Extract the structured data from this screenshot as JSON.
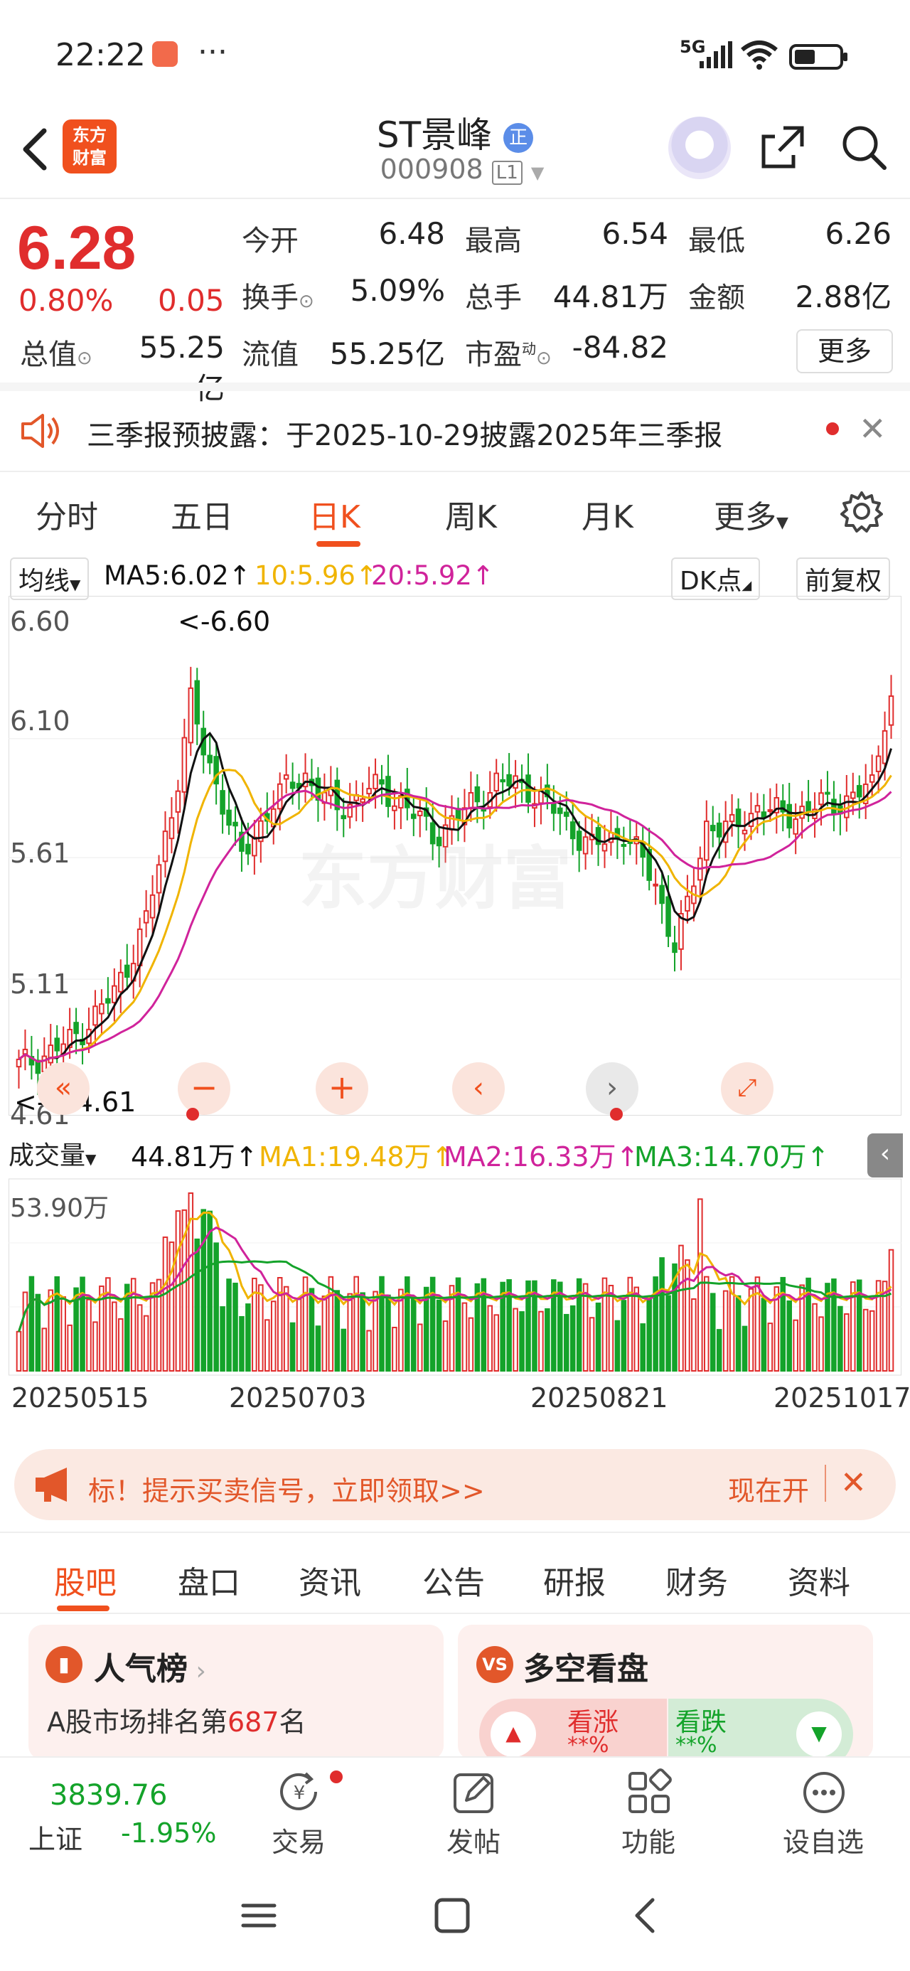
{
  "status_bar": {
    "time": "22:22",
    "dots": "···",
    "network": "5G"
  },
  "header": {
    "logo_line1": "东方",
    "logo_line2": "财富",
    "stock_name": "ST景峰",
    "badge": "正",
    "stock_code": "000908",
    "level": "L1"
  },
  "quote": {
    "price": "6.28",
    "change_pct": "0.80%",
    "change_amt": "0.05",
    "fields": [
      {
        "label": "今开",
        "value": "6.48",
        "color": "#e02d2d"
      },
      {
        "label": "最高",
        "value": "6.54",
        "color": "#e02d2d"
      },
      {
        "label": "最低",
        "value": "6.26",
        "color": "#e02d2d"
      },
      {
        "label": "换手",
        "value": "5.09%",
        "color": "#222"
      },
      {
        "label": "总手",
        "value": "44.81万",
        "color": "#222"
      },
      {
        "label": "金额",
        "value": "2.88亿",
        "color": "#222"
      },
      {
        "label": "总值",
        "value": "55.25亿",
        "color": "#222"
      },
      {
        "label": "流值",
        "value": "55.25亿",
        "color": "#222"
      },
      {
        "label": "市盈",
        "value": "-84.82",
        "color": "#222"
      }
    ],
    "pe_super": "动",
    "more_label": "更多"
  },
  "notice": {
    "text": "三季报预披露：于2025-10-29披露2025年三季报"
  },
  "k_tabs": [
    "分时",
    "五日",
    "日K",
    "周K",
    "月K",
    "更多"
  ],
  "ma": {
    "selector": "均线",
    "ma5": "MA5:6.02",
    "ma10": "10:5.96",
    "ma20": "20:5.92",
    "dk": "DK点",
    "adjust": "前复权"
  },
  "chart": {
    "y_labels": [
      "6.60",
      "6.10",
      "5.61",
      "5.11",
      "4.61"
    ],
    "high_mark": "<-6.60",
    "low_mark": "<----4.61",
    "volume_selector": "成交量",
    "volume_value": "44.81万",
    "vol_ma1": "MA1:19.48万",
    "vol_ma2": "MA2:16.33万",
    "vol_ma3": "MA3:14.70万",
    "vol_max": "53.90万",
    "dates": [
      "20250515",
      "20250703",
      "20250821",
      "20251017"
    ],
    "watermark": "东方财富",
    "colors": {
      "up": "#e02d2d",
      "down": "#14a32a",
      "ma5": "#111111",
      "ma10": "#f0b400",
      "ma20": "#d0239b"
    }
  },
  "chart_data": {
    "type": "candlestick",
    "y_range": [
      4.61,
      6.6
    ],
    "x_start": "20250515",
    "x_end": "20251017",
    "high": 6.6,
    "low": 4.61,
    "last_close": 6.28,
    "volume_max": "53.90万"
  },
  "banner": {
    "text": "标！提示买卖信号，立即领取>>",
    "right": "现在开"
  },
  "section_tabs": [
    "股吧",
    "盘口",
    "资讯",
    "公告",
    "研报",
    "财务",
    "资料"
  ],
  "cards": {
    "left_title": "人气榜",
    "left_line_prefix": "A股市场排名第",
    "left_rank": "687",
    "left_line_suffix": "名",
    "right_title": "多空看盘",
    "right_up": "看涨",
    "right_down": "看跌",
    "right_up_pct": "**%",
    "right_down_pct": "**%"
  },
  "bottom_nav": {
    "index_value": "3839.76",
    "index_name": "上证",
    "index_change": "-1.95%",
    "items": [
      "交易",
      "发帖",
      "功能",
      "设自选"
    ]
  }
}
